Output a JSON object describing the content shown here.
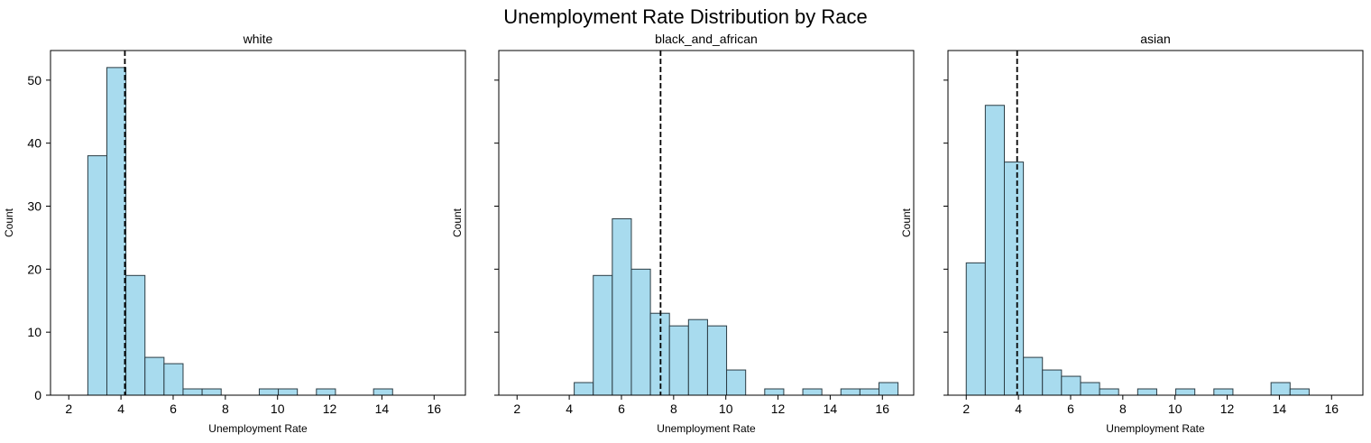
{
  "suptitle": "Unemployment Rate Distribution by Race",
  "colors": {
    "bar_fill": "#a8dbee",
    "bar_edge": "#2b3c44",
    "mean_line": "#000000"
  },
  "chart_data": [
    {
      "type": "bar",
      "title": "white",
      "xlabel": "Unemployment Rate",
      "ylabel": "Count",
      "xlim": [
        1.3,
        17.2
      ],
      "ylim": [
        0,
        54.7
      ],
      "xticks": [
        2,
        4,
        6,
        8,
        10,
        12,
        14,
        16
      ],
      "yticks": [
        0,
        10,
        20,
        30,
        40,
        50
      ],
      "bin_edges": [
        2.0,
        2.73,
        3.46,
        4.19,
        4.92,
        5.65,
        6.38,
        7.11,
        7.84,
        8.57,
        9.3,
        10.03,
        10.76,
        11.49,
        12.22,
        12.95,
        13.68,
        14.41,
        15.14,
        15.87,
        16.6
      ],
      "counts": [
        0,
        38,
        52,
        19,
        6,
        5,
        1,
        1,
        0,
        0,
        1,
        1,
        0,
        1,
        0,
        0,
        1,
        0,
        0,
        0
      ],
      "mean_line_x": 4.15,
      "grid": false
    },
    {
      "type": "bar",
      "title": "black_and_african",
      "xlabel": "Unemployment Rate",
      "ylabel": "Count",
      "xlim": [
        1.3,
        17.2
      ],
      "ylim": [
        0,
        54.7
      ],
      "xticks": [
        2,
        4,
        6,
        8,
        10,
        12,
        14,
        16
      ],
      "yticks": [
        0,
        10,
        20,
        30,
        40,
        50
      ],
      "bin_edges": [
        2.0,
        2.73,
        3.46,
        4.19,
        4.92,
        5.65,
        6.38,
        7.11,
        7.84,
        8.57,
        9.3,
        10.03,
        10.76,
        11.49,
        12.22,
        12.95,
        13.68,
        14.41,
        15.14,
        15.87,
        16.6
      ],
      "counts": [
        0,
        0,
        0,
        2,
        19,
        28,
        20,
        13,
        11,
        12,
        11,
        4,
        0,
        1,
        0,
        1,
        0,
        1,
        1,
        2
      ],
      "mean_line_x": 7.5,
      "grid": false
    },
    {
      "type": "bar",
      "title": "asian",
      "xlabel": "Unemployment Rate",
      "ylabel": "Count",
      "xlim": [
        1.3,
        17.2
      ],
      "ylim": [
        0,
        54.7
      ],
      "xticks": [
        2,
        4,
        6,
        8,
        10,
        12,
        14,
        16
      ],
      "yticks": [
        0,
        10,
        20,
        30,
        40,
        50
      ],
      "bin_edges": [
        2.0,
        2.73,
        3.46,
        4.19,
        4.92,
        5.65,
        6.38,
        7.11,
        7.84,
        8.57,
        9.3,
        10.03,
        10.76,
        11.49,
        12.22,
        12.95,
        13.68,
        14.41,
        15.14,
        15.87,
        16.6
      ],
      "counts": [
        21,
        46,
        37,
        6,
        4,
        3,
        2,
        1,
        0,
        1,
        0,
        1,
        0,
        1,
        0,
        0,
        2,
        1,
        0,
        0
      ],
      "mean_line_x": 3.95,
      "grid": false
    }
  ]
}
